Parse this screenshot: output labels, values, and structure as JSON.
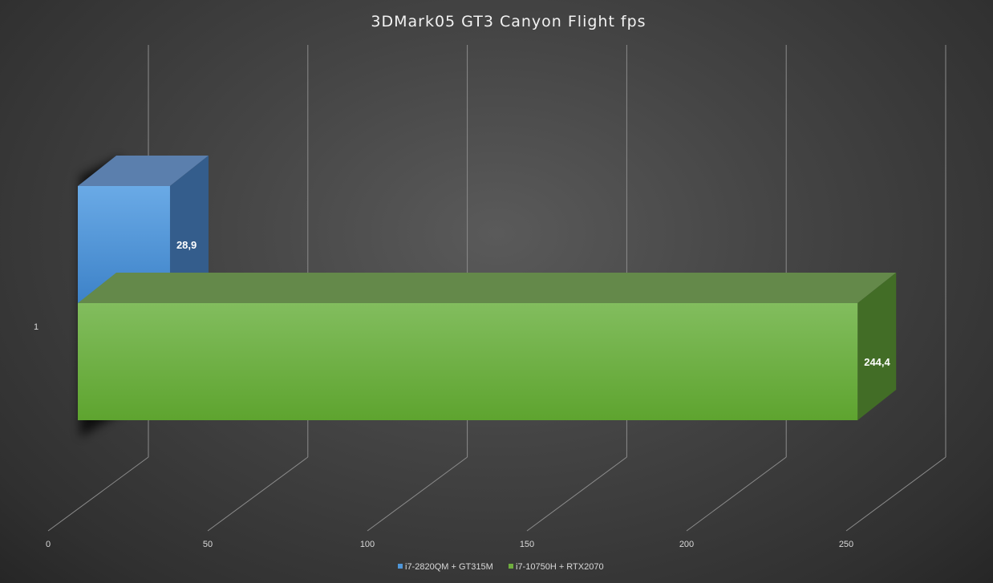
{
  "chart_data": {
    "type": "bar",
    "orientation": "horizontal",
    "three_d": true,
    "title": "3DMark05 GT3 Canyon Flight fps",
    "categories": [
      "1"
    ],
    "series": [
      {
        "name": "i7-2820QM + GT315M",
        "values": [
          28.9
        ],
        "label": "28,9",
        "color": "#4f96d8"
      },
      {
        "name": "i7-10750H + RTX2070",
        "values": [
          244.4
        ],
        "label": "244,4",
        "color": "#6fad3f"
      }
    ],
    "x_ticks": [
      "0",
      "50",
      "100",
      "150",
      "200",
      "250"
    ],
    "xlim": [
      0,
      250
    ],
    "grid": true,
    "legend_position": "bottom"
  }
}
